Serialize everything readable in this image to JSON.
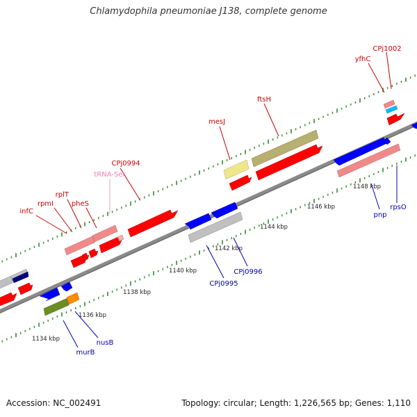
{
  "title": "Chlamydophila pneumoniae J138, complete genome",
  "accession_text": "Accession: NC_002491",
  "stats_text": "Topology: circular; Length: 1,226,565 bp; Genes: 1,110",
  "colors": {
    "backbone": "#8a8a8a",
    "tick": "#2d8a2d",
    "cds_forward": "#ff0000",
    "cds_reverse": "#0000ff",
    "highlight_pink": "#f08a8a",
    "label_top": "#cc0000",
    "label_trna": "#f080b0",
    "label_bottom": "#0000aa"
  },
  "map": {
    "scale_labels": [
      "1134 kbp",
      "1136 kbp",
      "1138 kbp",
      "1140 kbp",
      "1142 kbp",
      "1144 kbp",
      "1146 kbp",
      "1148 kbp"
    ],
    "top_gene_labels": [
      "infC",
      "rpmI",
      "rplT",
      "pheS",
      "tRNA-Ser",
      "CPj0994",
      "mesJ",
      "ftsH",
      "yfhC",
      "CPj1002"
    ],
    "bottom_gene_labels": [
      "murB",
      "nusB",
      "CPj0995",
      "CPj0996",
      "pnp",
      "rpsO"
    ]
  }
}
